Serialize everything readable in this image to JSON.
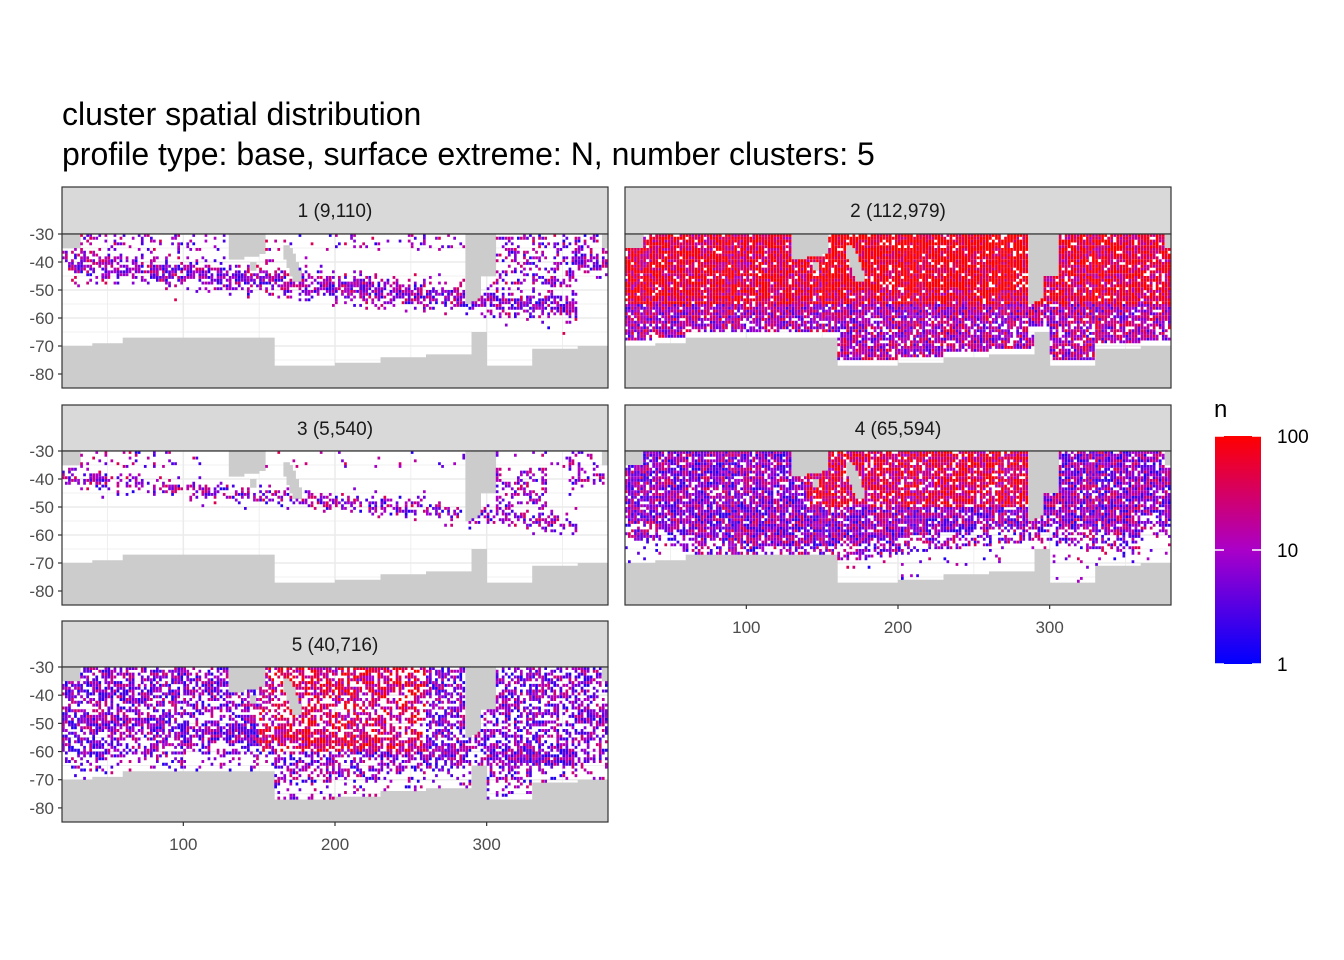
{
  "chart_data": {
    "type": "heatmap",
    "title_lines": [
      "cluster spatial distribution",
      "profile type: base, surface extreme: N, number clusters: 5"
    ],
    "xlabel": "",
    "ylabel": "",
    "xlim": [
      20,
      380
    ],
    "ylim": [
      -85,
      -30
    ],
    "x_ticks": [
      100,
      200,
      300
    ],
    "x_tick_labels": [
      "100",
      "200",
      "300"
    ],
    "y_ticks": [
      -30,
      -40,
      -50,
      -60,
      -70,
      -80
    ],
    "y_tick_labels": [
      "-30",
      "-40",
      "-50",
      "-60",
      "-70",
      "-80"
    ],
    "grid": true,
    "facets": [
      {
        "label": "1 (9,110)",
        "cluster": 1,
        "count": 9110
      },
      {
        "label": "2 (112,979)",
        "cluster": 2,
        "count": 112979
      },
      {
        "label": "3 (5,540)",
        "cluster": 3,
        "count": 5540
      },
      {
        "label": "4 (65,594)",
        "cluster": 4,
        "count": 65594
      },
      {
        "label": "5 (40,716)",
        "cluster": 5,
        "count": 40716
      }
    ],
    "legend": {
      "title": "n",
      "position": "right",
      "scale": "log10",
      "range": [
        1,
        100
      ],
      "breaks": [
        1,
        10,
        100
      ],
      "break_labels": [
        "1",
        "10",
        "100"
      ],
      "color_low": "#0000ff",
      "color_high": "#ff0000"
    },
    "colors": {
      "land": "#cccccc",
      "strip_fill": "#d9d9d9",
      "gridline": "#ebebeb"
    }
  }
}
